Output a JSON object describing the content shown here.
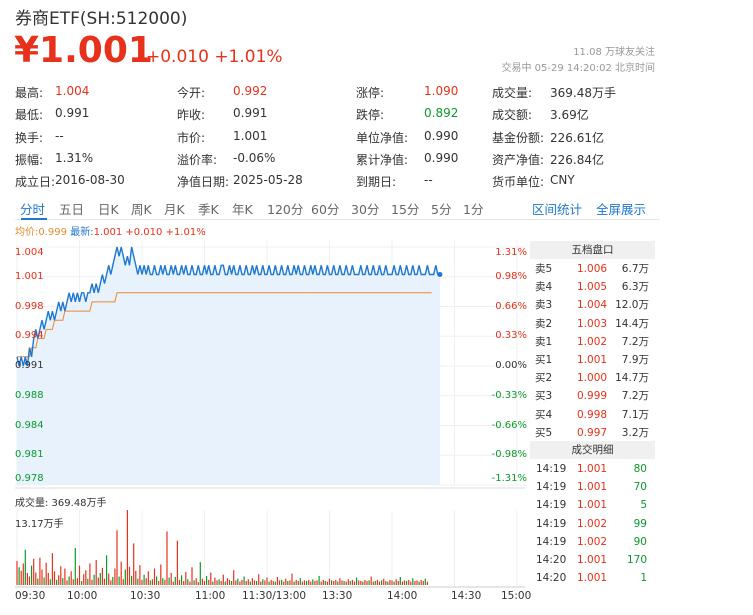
{
  "header": {
    "title": "券商ETF(SH:512000)",
    "price": "¥1.001",
    "change": "+0.010 +1.01%",
    "followers": "11.08 万球友关注",
    "status": "交易中 05-29 14:20:02 北京时间"
  },
  "stats": [
    [
      {
        "label": "最高:",
        "value": "1.004",
        "color": "red"
      },
      {
        "label": "今开:",
        "value": "0.992",
        "color": "red"
      },
      {
        "label": "涨停:",
        "value": "1.090",
        "color": "red"
      },
      {
        "label": "成交量:",
        "value": "369.48万手",
        "color": ""
      }
    ],
    [
      {
        "label": "最低:",
        "value": "0.991",
        "color": ""
      },
      {
        "label": "昨收:",
        "value": "0.991",
        "color": ""
      },
      {
        "label": "跌停:",
        "value": "0.892",
        "color": "green"
      },
      {
        "label": "成交额:",
        "value": "3.69亿",
        "color": ""
      }
    ],
    [
      {
        "label": "换手:",
        "value": "--",
        "color": ""
      },
      {
        "label": "市价:",
        "value": "1.001",
        "color": ""
      },
      {
        "label": "单位净值:",
        "value": "0.990",
        "color": ""
      },
      {
        "label": "基金份额:",
        "value": "226.61亿",
        "color": ""
      }
    ],
    [
      {
        "label": "振幅:",
        "value": "1.31%",
        "color": ""
      },
      {
        "label": "溢价率:",
        "value": "-0.06%",
        "color": ""
      },
      {
        "label": "累计净值:",
        "value": "0.990",
        "color": ""
      },
      {
        "label": "资产净值:",
        "value": "226.84亿",
        "color": ""
      }
    ],
    [
      {
        "label": "成立日:",
        "value": "2016-08-30",
        "color": ""
      },
      {
        "label": "净值日期:",
        "value": "2025-05-28",
        "color": ""
      },
      {
        "label": "到期日:",
        "value": "--",
        "color": ""
      },
      {
        "label": "货币单位:",
        "value": "CNY",
        "color": ""
      }
    ]
  ],
  "tabs": [
    "分时",
    "五日",
    "日K",
    "周K",
    "月K",
    "季K",
    "年K",
    "120分",
    "60分",
    "30分",
    "15分",
    "5分",
    "1分"
  ],
  "active_tab": "分时",
  "right_links": [
    "区间统计",
    "全屏展示"
  ],
  "legend": {
    "avg_label": "均价:",
    "avg_value": "0.999",
    "latest_label": "最新:",
    "latest_value": "1.001 +0.010 +1.01%"
  },
  "volume": {
    "title": "成交量: 369.48万手",
    "max": "13.17万手"
  },
  "order_book": {
    "title": "五档盘口",
    "rows": [
      {
        "label": "卖5",
        "price": "1.006",
        "volume": "6.7万"
      },
      {
        "label": "卖4",
        "price": "1.005",
        "volume": "6.3万"
      },
      {
        "label": "卖3",
        "price": "1.004",
        "volume": "12.0万"
      },
      {
        "label": "卖2",
        "price": "1.003",
        "volume": "14.4万"
      },
      {
        "label": "卖1",
        "price": "1.002",
        "volume": "7.2万"
      },
      {
        "label": "买1",
        "price": "1.001",
        "volume": "7.9万"
      },
      {
        "label": "买2",
        "price": "1.000",
        "volume": "14.7万"
      },
      {
        "label": "买3",
        "price": "0.999",
        "volume": "7.2万"
      },
      {
        "label": "买4",
        "price": "0.998",
        "volume": "7.1万"
      },
      {
        "label": "买5",
        "price": "0.997",
        "volume": "3.2万"
      }
    ]
  },
  "trades": {
    "title": "成交明细",
    "rows": [
      {
        "time": "14:19",
        "price": "1.001",
        "volume": "80"
      },
      {
        "time": "14:19",
        "price": "1.001",
        "volume": "70"
      },
      {
        "time": "14:19",
        "price": "1.001",
        "volume": "5"
      },
      {
        "time": "14:19",
        "price": "1.002",
        "volume": "99"
      },
      {
        "time": "14:19",
        "price": "1.002",
        "volume": "90"
      },
      {
        "time": "14:20",
        "price": "1.001",
        "volume": "170"
      },
      {
        "time": "14:20",
        "price": "1.001",
        "volume": "1"
      }
    ]
  },
  "chart_data": {
    "type": "line",
    "x_ticks": [
      "09:30",
      "10:00",
      "10:30",
      "11:00",
      "11:30/13:00",
      "13:30",
      "14:00",
      "14:30",
      "15:00"
    ],
    "y_ticks_left": [
      "1.004",
      "1.001",
      "0.998",
      "0.994",
      "0.991",
      "0.988",
      "0.984",
      "0.981",
      "0.978"
    ],
    "y_ticks_right": [
      "1.31%",
      "0.98%",
      "0.66%",
      "0.33%",
      "0.00%",
      "-0.33%",
      "-0.66%",
      "-0.98%",
      "-1.31%"
    ],
    "ylim": [
      0.978,
      1.004
    ],
    "prev_close": 0.991,
    "series": [
      {
        "values": [
          0.992,
          0.991,
          0.992,
          0.991,
          0.992,
          0.991,
          0.993,
          0.992,
          0.994,
          0.995,
          0.994,
          0.995,
          0.996,
          0.995,
          0.996,
          0.997,
          0.996,
          0.997,
          0.996,
          0.997,
          0.998,
          0.997,
          0.998,
          0.997,
          0.998,
          0.999,
          0.998,
          0.999,
          0.998,
          0.999,
          0.998,
          0.999,
          0.999,
          0.998,
          0.999,
          0.999,
          1.0,
          0.999,
          1.0,
          0.999,
          1.0,
          1.001,
          1.0,
          1.001,
          1.002,
          1.001,
          1.002,
          1.003,
          1.004,
          1.003,
          1.004,
          1.003,
          1.002,
          1.003,
          1.002,
          1.004,
          1.003,
          1.002,
          1.001,
          1.002,
          1.001,
          1.002,
          1.001,
          1.002,
          1.001,
          1.001,
          1.002,
          1.001,
          1.001,
          1.002,
          1.001,
          1.002,
          1.001,
          1.001,
          1.002,
          1.001,
          1.002,
          1.001,
          1.001,
          1.002,
          1.001,
          1.002,
          1.001,
          1.001,
          1.002,
          1.001,
          1.001,
          1.002,
          1.001,
          1.001,
          1.002,
          1.001,
          1.002,
          1.001,
          1.001,
          1.002,
          1.001,
          1.001,
          1.002,
          1.002,
          1.001,
          1.001,
          1.002,
          1.001,
          1.002,
          1.001,
          1.001,
          1.002,
          1.001,
          1.001,
          1.002,
          1.001,
          1.001,
          1.002,
          1.001,
          1.002,
          1.001,
          1.001,
          1.002,
          1.001,
          1.001,
          1.002,
          1.001,
          1.001,
          1.002,
          1.001,
          1.001,
          1.002,
          1.001,
          1.001,
          1.002,
          1.001,
          1.001,
          1.002,
          1.001,
          1.002,
          1.001,
          1.001,
          1.002,
          1.001,
          1.001,
          1.002,
          1.001,
          1.002,
          1.001,
          1.001,
          1.002,
          1.001,
          1.001,
          1.002,
          1.001,
          1.001,
          1.002,
          1.001,
          1.001,
          1.002,
          1.001,
          1.001,
          1.002,
          1.001,
          1.001,
          1.002,
          1.001,
          1.001,
          1.001,
          1.002,
          1.001,
          1.001,
          1.002,
          1.001,
          1.001,
          1.002,
          1.001,
          1.001,
          1.002,
          1.001,
          1.001,
          1.002,
          1.001,
          1.001,
          1.001,
          1.002,
          1.001,
          1.001,
          1.002,
          1.001,
          1.001,
          1.002,
          1.001,
          1.001,
          1.002,
          1.001,
          1.001,
          1.002,
          1.001,
          1.001,
          1.001,
          1.002,
          1.001,
          1.001,
          1.001,
          1.002,
          1.001,
          1.001
        ]
      },
      {
        "values": [
          0.992,
          0.992,
          0.992,
          0.992,
          0.992,
          0.992,
          0.992,
          0.993,
          0.993,
          0.993,
          0.994,
          0.994,
          0.994,
          0.994,
          0.995,
          0.995,
          0.995,
          0.995,
          0.996,
          0.996,
          0.996,
          0.996,
          0.996,
          0.997,
          0.997,
          0.997,
          0.997,
          0.997,
          0.997,
          0.997,
          0.997,
          0.997,
          0.997,
          0.997,
          0.997,
          0.997,
          0.998,
          0.998,
          0.998,
          0.998,
          0.998,
          0.998,
          0.998,
          0.998,
          0.998,
          0.998,
          0.998,
          0.998,
          0.999,
          0.999,
          0.999,
          0.999,
          0.999,
          0.999,
          0.999,
          0.999,
          0.999,
          0.999,
          0.999,
          0.999,
          0.999,
          0.999,
          0.999,
          0.999,
          0.999,
          0.999,
          0.999,
          0.999,
          0.999,
          0.999,
          0.999,
          0.999,
          0.999,
          0.999,
          0.999,
          0.999,
          0.999,
          0.999,
          0.999,
          0.999,
          0.999,
          0.999,
          0.999,
          0.999,
          0.999,
          0.999,
          0.999,
          0.999,
          0.999,
          0.999,
          0.999,
          0.999,
          0.999,
          0.999,
          0.999,
          0.999,
          0.999,
          0.999,
          0.999,
          0.999,
          0.999,
          0.999,
          0.999,
          0.999,
          0.999,
          0.999,
          0.999,
          0.999,
          0.999,
          0.999,
          0.999,
          0.999,
          0.999,
          0.999,
          0.999,
          0.999,
          0.999,
          0.999,
          0.999,
          0.999,
          0.999,
          0.999,
          0.999,
          0.999,
          0.999,
          0.999,
          0.999,
          0.999,
          0.999,
          0.999,
          0.999,
          0.999,
          0.999,
          0.999,
          0.999,
          0.999,
          0.999,
          0.999,
          0.999,
          0.999,
          0.999,
          0.999,
          0.999,
          0.999,
          0.999,
          0.999,
          0.999,
          0.999,
          0.999,
          0.999,
          0.999,
          0.999,
          0.999,
          0.999,
          0.999,
          0.999,
          0.999,
          0.999,
          0.999,
          0.999,
          0.999,
          0.999,
          0.999,
          0.999,
          0.999,
          0.999,
          0.999,
          0.999,
          0.999,
          0.999,
          0.999,
          0.999,
          0.999,
          0.999,
          0.999,
          0.999,
          0.999,
          0.999,
          0.999,
          0.999,
          0.999,
          0.999,
          0.999,
          0.999,
          0.999,
          0.999,
          0.999,
          0.999,
          0.999,
          0.999,
          0.999,
          0.999,
          0.999,
          0.999,
          0.999,
          0.999,
          0.999,
          0.999,
          0.999,
          0.999
        ]
      }
    ],
    "volume_ylim": [
      0,
      13.17
    ],
    "volume_values": [
      4.2,
      3.1,
      2.5,
      3.8,
      6.2,
      2.1,
      1.5,
      3.4,
      4.6,
      2.2,
      1.1,
      4.8,
      2.7,
      1.3,
      3.9,
      2.1,
      1.0,
      5.6,
      2.4,
      0.9,
      1.7,
      3.3,
      1.2,
      2.9,
      0.8,
      1.5,
      2.4,
      1.0,
      6.5,
      1.2,
      3.4,
      0.7,
      1.9,
      2.6,
      1.1,
      3.8,
      0.9,
      1.8,
      4.4,
      1.3,
      2.1,
      3.0,
      1.1,
      5.2,
      2.0,
      0.8,
      1.4,
      2.9,
      9.6,
      1.5,
      4.1,
      1.0,
      2.7,
      13.17,
      3.2,
      1.6,
      7.3,
      2.5,
      1.1,
      3.5,
      0.9,
      1.8,
      1.2,
      2.4,
      0.8,
      1.0,
      2.9,
      1.5,
      0.7,
      3.6,
      1.2,
      0.9,
      9.4,
      1.3,
      2.1,
      0.6,
      1.4,
      7.8,
      0.9,
      1.7,
      0.7,
      2.3,
      1.0,
      0.6,
      3.1,
      0.8,
      1.2,
      0.5,
      4.0,
      1.1,
      0.7,
      1.6,
      0.9,
      2.2,
      0.6,
      1.3,
      0.8,
      1.0,
      0.7,
      1.8,
      0.6,
      1.2,
      0.9,
      0.7,
      2.6,
      0.8,
      1.1,
      0.6,
      0.9,
      1.5,
      0.7,
      1.0,
      0.6,
      1.2,
      0.8,
      0.7,
      1.9,
      0.6,
      1.0,
      0.8,
      1.3,
      0.6,
      0.9,
      0.7,
      0.6,
      1.4,
      0.8,
      0.9,
      0.6,
      1.1,
      0.7,
      0.8,
      2.0,
      0.6,
      0.9,
      0.7,
      1.2,
      0.6,
      0.8,
      0.7,
      0.9,
      0.6,
      1.0,
      0.7,
      0.8,
      1.6,
      0.6,
      0.9,
      0.7,
      0.6,
      1.1,
      0.8,
      0.7,
      0.9,
      0.6,
      1.2,
      0.8,
      0.7,
      0.6,
      1.0,
      0.7,
      0.9,
      0.6,
      1.3,
      0.8,
      0.7,
      0.6,
      0.9,
      0.7,
      0.8,
      1.5,
      0.6,
      0.7,
      0.9,
      0.6,
      0.8,
      1.1,
      0.7,
      0.6,
      0.9,
      0.8,
      0.6,
      1.0,
      0.7,
      1.4,
      0.6,
      0.8,
      0.7,
      0.9,
      0.6,
      1.2,
      0.7,
      0.8,
      0.6,
      0.9,
      0.7,
      1.1,
      0.6
    ],
    "volume_colors": "rg"
  },
  "colors": {
    "up": "#e8311b",
    "down": "#0a9b2b",
    "price_line": "#1e78d3",
    "avg_line": "#e88a2c",
    "fill": "#e8f2fc"
  }
}
